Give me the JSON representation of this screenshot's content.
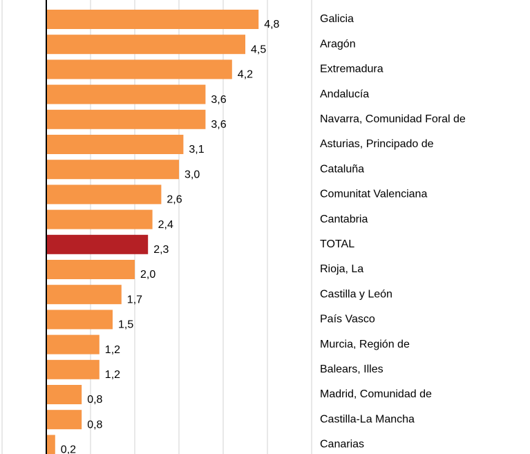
{
  "chart_data": {
    "type": "hbar",
    "categories": [
      "Galicia",
      "Aragón",
      "Extremadura",
      "Andalucía",
      "Navarra, Comunidad Foral de",
      "Asturias, Principado de",
      "Cataluña",
      "Comunitat Valenciana",
      "Cantabria",
      "TOTAL",
      "Rioja, La",
      "Castilla y León",
      "País Vasco",
      "Murcia, Región de",
      "Balears, Illes",
      "Madrid, Comunidad de",
      "Castilla-La Mancha",
      "Canarias"
    ],
    "values": [
      4.8,
      4.5,
      4.2,
      3.6,
      3.6,
      3.1,
      3.0,
      2.6,
      2.4,
      2.3,
      2.0,
      1.7,
      1.5,
      1.2,
      1.2,
      0.8,
      0.8,
      0.2
    ],
    "value_labels": [
      "4,8",
      "4,5",
      "4,2",
      "3,6",
      "3,6",
      "3,1",
      "3,0",
      "2,6",
      "2,4",
      "2,3",
      "2,0",
      "1,7",
      "1,5",
      "1,2",
      "1,2",
      "0,8",
      "0,8",
      "0,2"
    ],
    "colors": [
      "#f79646",
      "#f79646",
      "#f79646",
      "#f79646",
      "#f79646",
      "#f79646",
      "#f79646",
      "#f79646",
      "#f79646",
      "#b52025",
      "#f79646",
      "#f79646",
      "#f79646",
      "#f79646",
      "#f79646",
      "#f79646",
      "#f79646",
      "#f79646"
    ],
    "xlim": [
      -1,
      6
    ],
    "xticks": [
      -1,
      0,
      1,
      2,
      3,
      4,
      5,
      6
    ],
    "grid": true
  }
}
